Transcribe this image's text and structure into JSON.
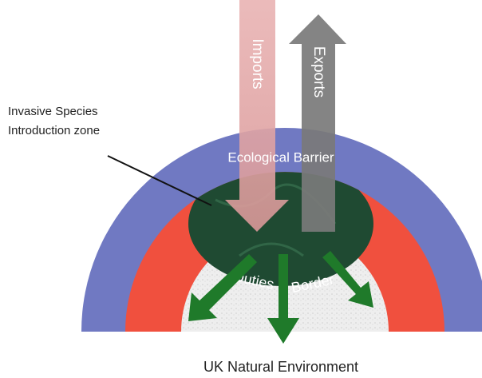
{
  "labels": {
    "imports": "Imports",
    "exports": "Exports",
    "zone_line1": "Invasive Species",
    "zone_line2": "Introduction zone",
    "barrier": "Ecological Barrier",
    "duties": "Duties",
    "border": "Border",
    "environment": "UK Natural Environment"
  }
}
